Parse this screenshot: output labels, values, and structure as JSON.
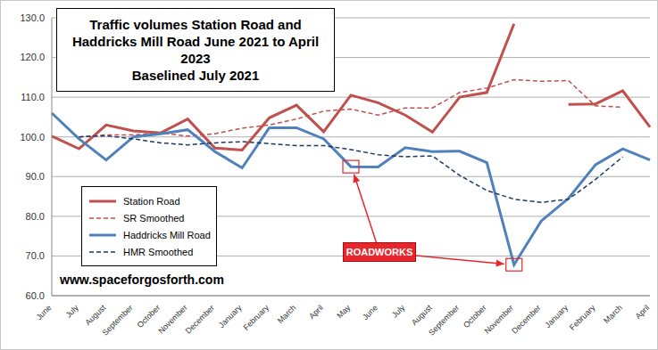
{
  "chart_data": {
    "type": "line",
    "title": "Traffic volumes Station Road and\nHaddricks Mill Road June 2021 to April 2023\nBaselined July 2021",
    "categories": [
      "June",
      "July",
      "August",
      "September",
      "October",
      "November",
      "December",
      "January",
      "February",
      "March",
      "April",
      "May",
      "June",
      "July",
      "August",
      "September",
      "October",
      "November",
      "December",
      "January",
      "February",
      "March",
      "April"
    ],
    "series": [
      {
        "name": "Station Road",
        "color": "#c0504d",
        "line_style": "solid",
        "values": [
          100.2,
          97,
          103,
          101.5,
          101,
          104.5,
          97.2,
          96.7,
          104.8,
          108,
          101.3,
          110.5,
          108.6,
          105.5,
          101.2,
          110,
          111.2,
          128.5,
          null,
          108.2,
          108.3,
          111.6,
          102.5
        ]
      },
      {
        "name": "SR Smoothed",
        "color": "#c0504d",
        "line_style": "dashed",
        "values": [
          null,
          100,
          100.5,
          100.5,
          101,
          100.2,
          100.8,
          102.2,
          103,
          104.5,
          106.5,
          107,
          105.5,
          107.3,
          107.3,
          111.2,
          112.3,
          114.4,
          114,
          114.2,
          107.8,
          107.5,
          null
        ]
      },
      {
        "name": "Haddricks Mill Road",
        "color": "#4f81bd",
        "line_style": "solid",
        "values": [
          106,
          99.5,
          94.2,
          100,
          100.8,
          101.8,
          96.3,
          92.2,
          102.3,
          102.3,
          99.5,
          92.5,
          92.4,
          97.3,
          96.3,
          96.4,
          93.5,
          67.8,
          78.8,
          84.5,
          93,
          97,
          94.2
        ]
      },
      {
        "name": "HMR Smoothed",
        "color": "#1f3864",
        "line_style": "dashed",
        "values": [
          null,
          100,
          100.3,
          99.5,
          98.5,
          98,
          98.5,
          98.8,
          98.3,
          97.8,
          97.8,
          96.8,
          95.5,
          95,
          95.2,
          90.3,
          86.5,
          84.3,
          83.5,
          84.3,
          89.3,
          95,
          null
        ]
      }
    ],
    "ylim": [
      60,
      130
    ],
    "yticks": [
      {
        "value": 60,
        "label": "60.0"
      },
      {
        "value": 70,
        "label": "70.0"
      },
      {
        "value": 80,
        "label": "80.0"
      },
      {
        "value": 90,
        "label": "90.0"
      },
      {
        "value": 100,
        "label": "100.0"
      },
      {
        "value": 110,
        "label": "110.0"
      },
      {
        "value": 120,
        "label": "120.0"
      },
      {
        "value": 130,
        "label": "130.0"
      }
    ],
    "grid": true,
    "legend": "left",
    "annotations": [
      {
        "text": "ROADWORKS",
        "x": [
          11,
          17
        ],
        "y": [
          92.5,
          67.8
        ]
      },
      {
        "text": "www.spaceforgosforth.com"
      }
    ]
  }
}
